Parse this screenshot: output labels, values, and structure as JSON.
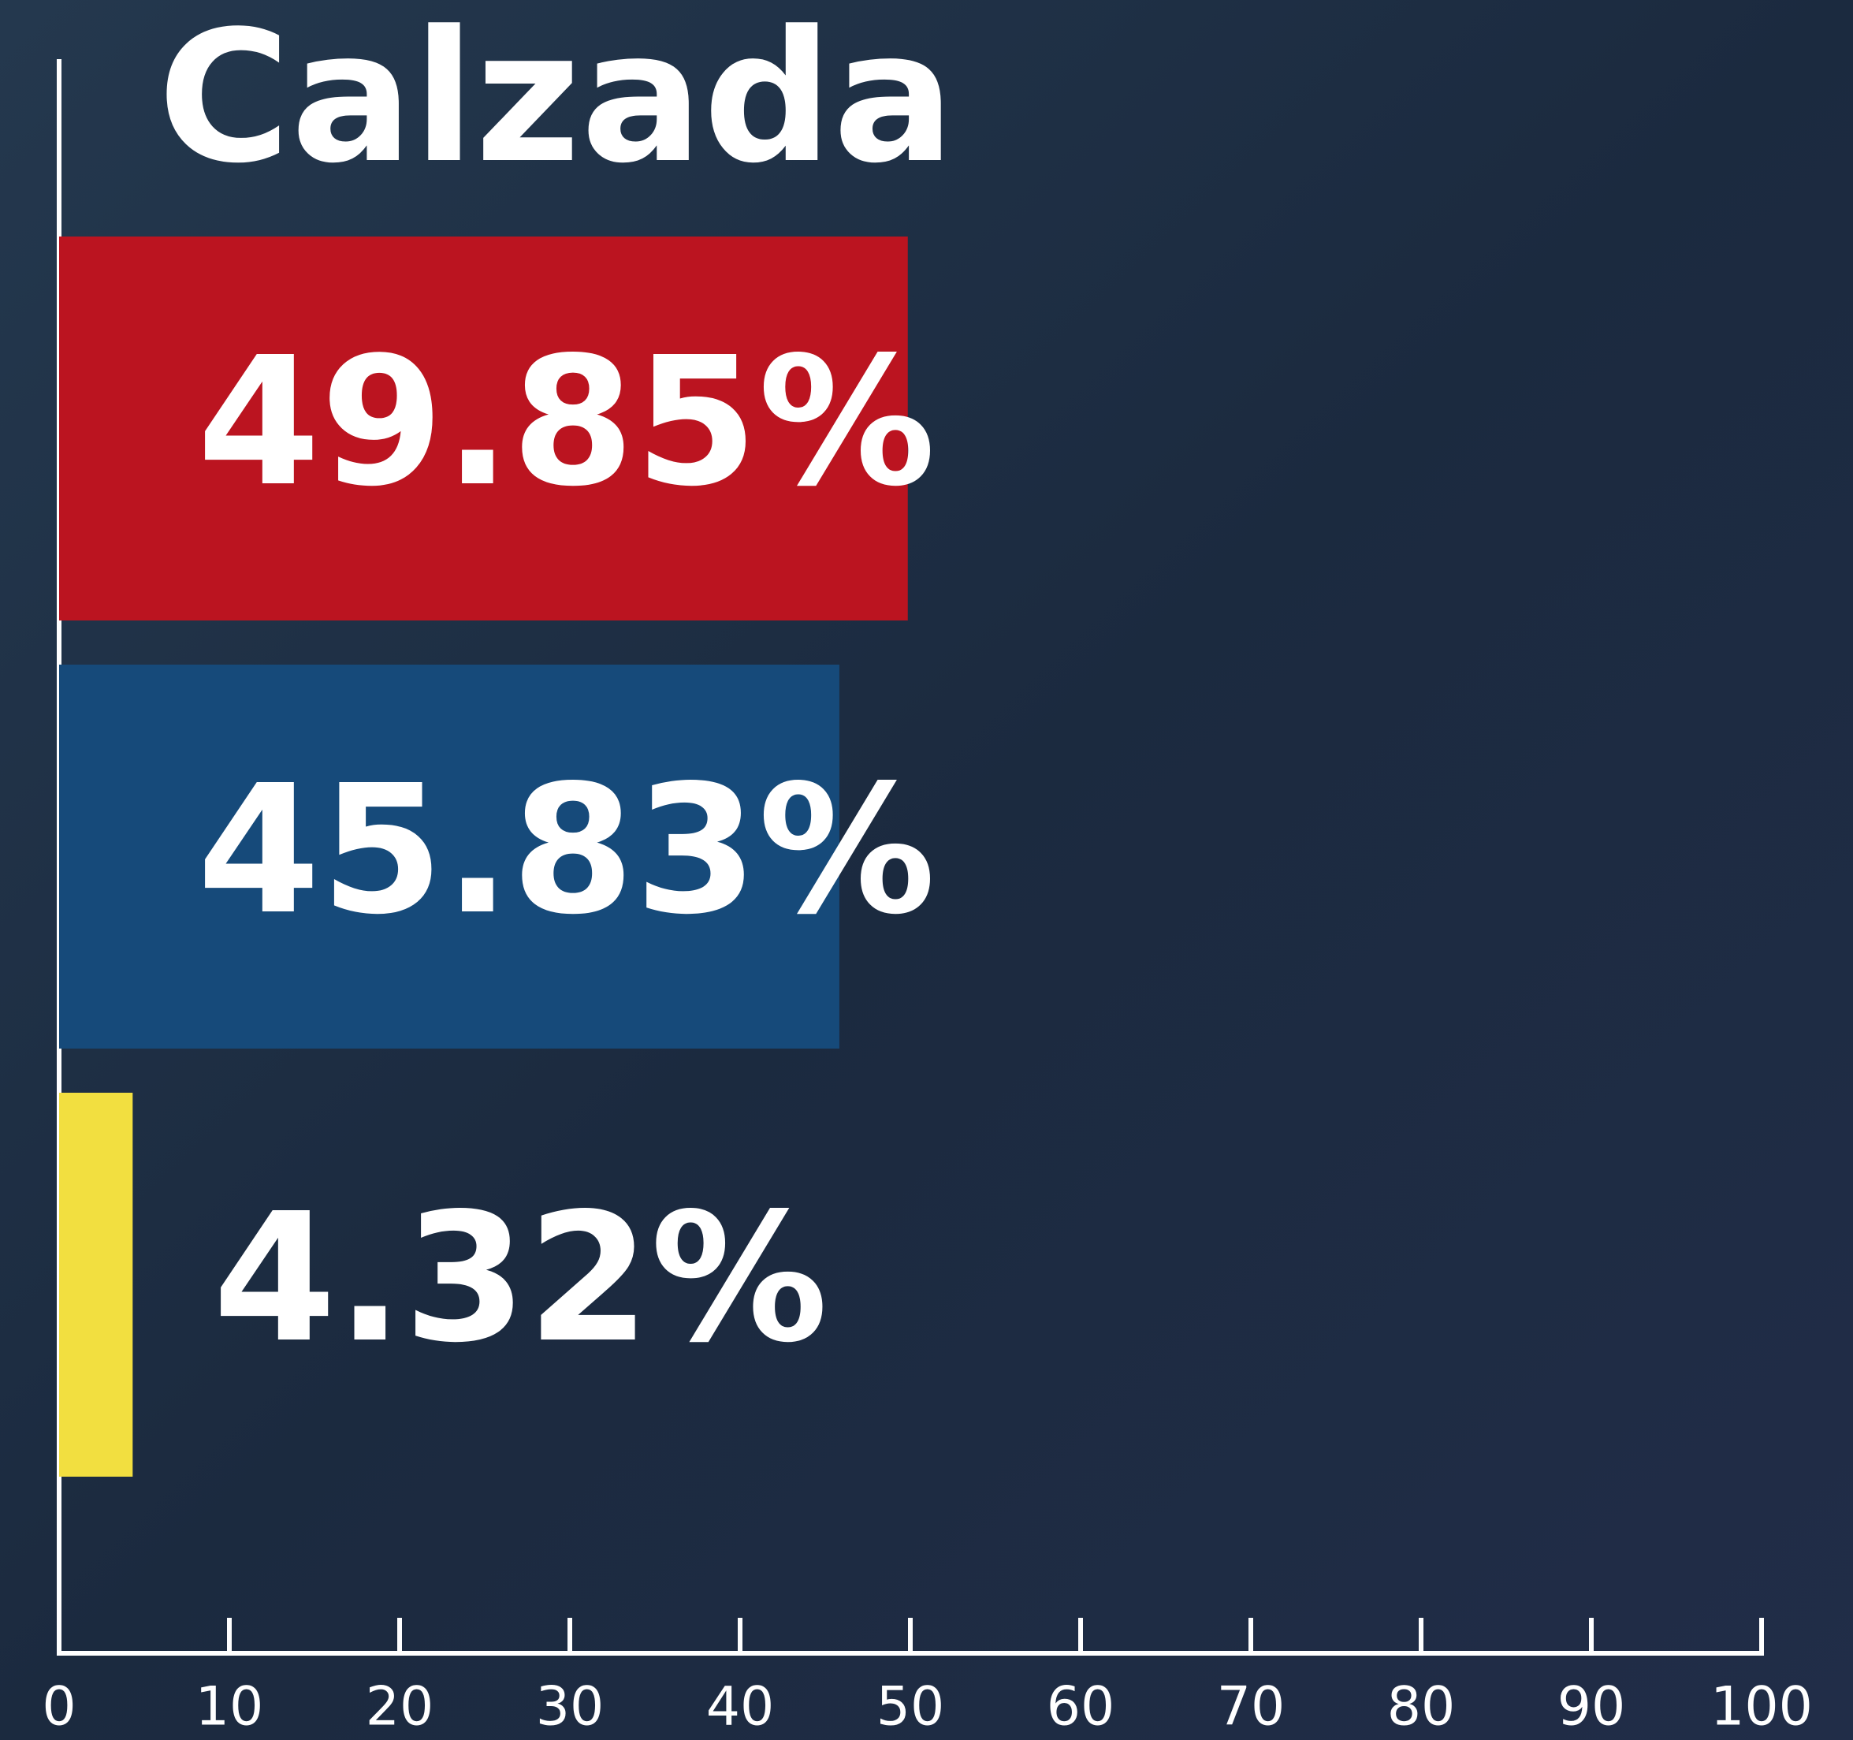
{
  "chart_data": {
    "type": "bar",
    "orientation": "horizontal",
    "title": "Calzada",
    "values": [
      49.85,
      45.83,
      4.32
    ],
    "value_labels": [
      "49.85%",
      "45.83%",
      "4.32%"
    ],
    "colors": [
      "#bb1420",
      "#164a7a",
      "#f2df40"
    ],
    "xlim": [
      0,
      100
    ],
    "xticks": [
      0,
      10,
      20,
      30,
      40,
      50,
      60,
      70,
      80,
      90,
      100
    ]
  }
}
